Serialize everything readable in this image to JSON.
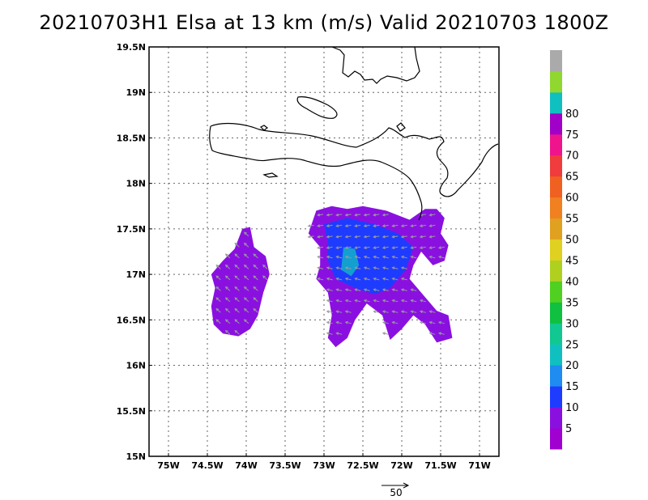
{
  "title": "20210703H1 Elsa at 13 km (m/s) Valid 20210703 1800Z",
  "chart_data": {
    "type": "heatmap",
    "title": "20210703H1 Elsa at 13 km (m/s) Valid 20210703 1800Z",
    "x_ticks": [
      {
        "value": -75,
        "label": "75W"
      },
      {
        "value": -74.5,
        "label": "74.5W"
      },
      {
        "value": -74,
        "label": "74W"
      },
      {
        "value": -73.5,
        "label": "73.5W"
      },
      {
        "value": -73,
        "label": "73W"
      },
      {
        "value": -72.5,
        "label": "72.5W"
      },
      {
        "value": -72,
        "label": "72W"
      },
      {
        "value": -71.5,
        "label": "71.5W"
      },
      {
        "value": -71,
        "label": "71W"
      }
    ],
    "y_ticks": [
      {
        "value": 15,
        "label": "15N"
      },
      {
        "value": 15.5,
        "label": "15.5N"
      },
      {
        "value": 16,
        "label": "16N"
      },
      {
        "value": 16.5,
        "label": "16.5N"
      },
      {
        "value": 17,
        "label": "17N"
      },
      {
        "value": 17.5,
        "label": "17.5N"
      },
      {
        "value": 18,
        "label": "18N"
      },
      {
        "value": 18.5,
        "label": "18.5N"
      },
      {
        "value": 19,
        "label": "19N"
      },
      {
        "value": 19.5,
        "label": "19.5N"
      }
    ],
    "xlim": [
      -75.25,
      -70.75
    ],
    "ylim": [
      15,
      19.5
    ],
    "grid": true,
    "colorbar": {
      "labels": [
        "5",
        "10",
        "15",
        "20",
        "25",
        "30",
        "35",
        "40",
        "45",
        "50",
        "55",
        "60",
        "65",
        "70",
        "75",
        "80"
      ],
      "colors": [
        "#a000d0",
        "#8a10e0",
        "#1e3cff",
        "#1e8cf0",
        "#10c0c0",
        "#10c890",
        "#10c040",
        "#50d020",
        "#b0d020",
        "#e0d020",
        "#e0a020",
        "#f08020",
        "#f06020",
        "#f03c3c",
        "#f0148c",
        "#a000c8",
        "#10c0c0",
        "#90d830",
        "#aaaaaa"
      ]
    },
    "reference_vector": {
      "label": "50",
      "value": 50
    },
    "regions": [
      {
        "name": "western-patch",
        "value": 5,
        "polygon": [
          [
            -74.05,
            17.5
          ],
          [
            -73.95,
            17.52
          ],
          [
            -73.9,
            17.3
          ],
          [
            -73.75,
            17.2
          ],
          [
            -73.7,
            17.0
          ],
          [
            -73.78,
            16.8
          ],
          [
            -73.85,
            16.55
          ],
          [
            -73.95,
            16.4
          ],
          [
            -74.1,
            16.32
          ],
          [
            -74.3,
            16.35
          ],
          [
            -74.42,
            16.45
          ],
          [
            -74.45,
            16.65
          ],
          [
            -74.4,
            16.85
          ],
          [
            -74.45,
            17.0
          ],
          [
            -74.3,
            17.15
          ],
          [
            -74.15,
            17.28
          ]
        ]
      },
      {
        "name": "eastern-patch",
        "value": 5,
        "polygon": [
          [
            -73.1,
            17.7
          ],
          [
            -72.9,
            17.75
          ],
          [
            -72.7,
            17.72
          ],
          [
            -72.5,
            17.75
          ],
          [
            -72.2,
            17.7
          ],
          [
            -71.9,
            17.6
          ],
          [
            -71.7,
            17.72
          ],
          [
            -71.55,
            17.72
          ],
          [
            -71.45,
            17.62
          ],
          [
            -71.5,
            17.45
          ],
          [
            -71.4,
            17.32
          ],
          [
            -71.45,
            17.15
          ],
          [
            -71.6,
            17.1
          ],
          [
            -71.75,
            17.25
          ],
          [
            -71.85,
            17.1
          ],
          [
            -71.9,
            16.95
          ],
          [
            -71.7,
            16.75
          ],
          [
            -71.55,
            16.6
          ],
          [
            -71.4,
            16.55
          ],
          [
            -71.35,
            16.3
          ],
          [
            -71.55,
            16.25
          ],
          [
            -71.7,
            16.45
          ],
          [
            -71.85,
            16.55
          ],
          [
            -72.0,
            16.4
          ],
          [
            -72.15,
            16.28
          ],
          [
            -72.25,
            16.55
          ],
          [
            -72.45,
            16.68
          ],
          [
            -72.6,
            16.5
          ],
          [
            -72.7,
            16.3
          ],
          [
            -72.85,
            16.2
          ],
          [
            -72.95,
            16.3
          ],
          [
            -72.9,
            16.55
          ],
          [
            -72.95,
            16.8
          ],
          [
            -73.1,
            16.95
          ],
          [
            -73.05,
            17.1
          ],
          [
            -73.05,
            17.3
          ],
          [
            -73.2,
            17.45
          ]
        ]
      },
      {
        "name": "eastern-core-blue",
        "value": 10,
        "polygon": [
          [
            -73.0,
            17.55
          ],
          [
            -72.7,
            17.62
          ],
          [
            -72.35,
            17.55
          ],
          [
            -72.05,
            17.45
          ],
          [
            -71.85,
            17.3
          ],
          [
            -71.95,
            17.05
          ],
          [
            -72.15,
            16.85
          ],
          [
            -72.35,
            16.78
          ],
          [
            -72.6,
            16.85
          ],
          [
            -72.85,
            16.95
          ],
          [
            -72.95,
            17.15
          ],
          [
            -72.95,
            17.35
          ]
        ]
      },
      {
        "name": "eastern-core-cyan",
        "value": 20,
        "polygon": [
          [
            -72.75,
            17.3
          ],
          [
            -72.6,
            17.28
          ],
          [
            -72.55,
            17.1
          ],
          [
            -72.65,
            16.98
          ],
          [
            -72.78,
            17.05
          ]
        ]
      }
    ]
  }
}
